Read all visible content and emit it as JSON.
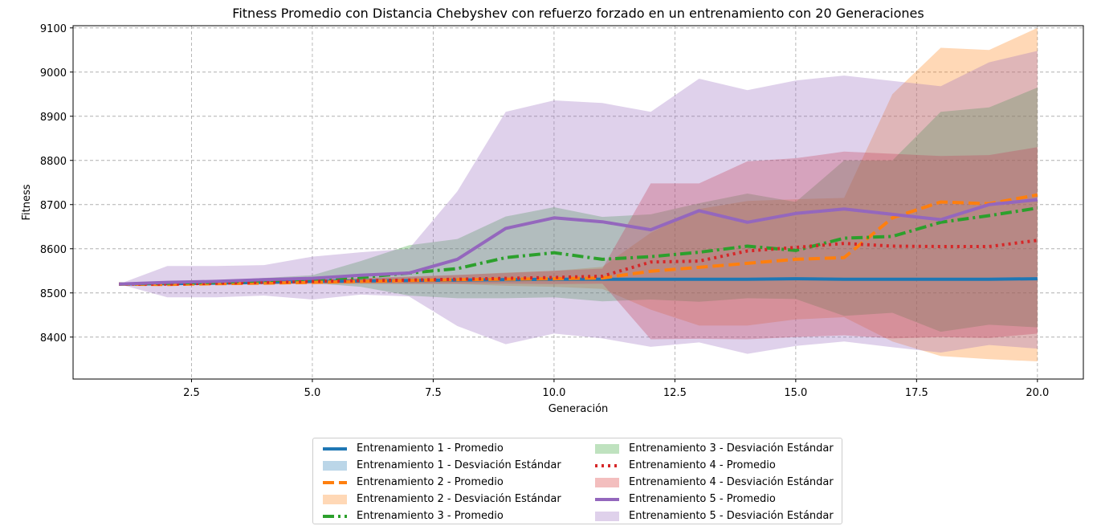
{
  "chart_data": {
    "type": "line",
    "title": "Fitness Promedio con Distancia Chebyshev con refuerzo forzado en un entrenamiento con 20 Generaciones",
    "xlabel": "Generación",
    "ylabel": "Fitness",
    "xlim": [
      0.05,
      20.95
    ],
    "ylim": [
      8305,
      9105
    ],
    "xticks": [
      2.5,
      5.0,
      7.5,
      10.0,
      12.5,
      15.0,
      17.5,
      20.0
    ],
    "xtick_labels": [
      "2.5",
      "5.0",
      "7.5",
      "10.0",
      "12.5",
      "15.0",
      "17.5",
      "20.0"
    ],
    "yticks": [
      8400,
      8500,
      8600,
      8700,
      8800,
      8900,
      9000,
      9100
    ],
    "ytick_labels": [
      "8400",
      "8500",
      "8600",
      "8700",
      "8800",
      "8900",
      "9000",
      "9100"
    ],
    "grid": true,
    "legend_position": "bottom-center, below plot, two columns",
    "x": [
      1,
      2,
      3,
      4,
      5,
      6,
      7,
      8,
      9,
      10,
      11,
      12,
      13,
      14,
      15,
      16,
      17,
      18,
      19,
      20
    ],
    "series": [
      {
        "name": "Entrenamiento 1 - Promedio",
        "band_name": "Entrenamiento 1 - Desviación Estándar",
        "color": "#1f77b4",
        "line_style": "solid",
        "mean": [
          8520,
          8521,
          8522,
          8524,
          8526,
          8527,
          8528,
          8529,
          8530,
          8531,
          8531,
          8531,
          8531,
          8531,
          8532,
          8531,
          8531,
          8531,
          8531,
          8532
        ],
        "upper": [
          8520,
          8523,
          8524,
          8526,
          8528,
          8530,
          8531,
          8532,
          8533,
          8534,
          8534,
          8534,
          8534,
          8534,
          8535,
          8534,
          8534,
          8534,
          8534,
          8535
        ],
        "lower": [
          8520,
          8519,
          8520,
          8522,
          8524,
          8524,
          8525,
          8526,
          8527,
          8528,
          8528,
          8528,
          8528,
          8528,
          8529,
          8528,
          8528,
          8528,
          8528,
          8529
        ]
      },
      {
        "name": "Entrenamiento 2 - Promedio",
        "band_name": "Entrenamiento 2 - Desviación Estándar",
        "color": "#ff7f0e",
        "line_style": "dashed",
        "mean": [
          8520,
          8519,
          8521,
          8522,
          8524,
          8526,
          8528,
          8530,
          8531,
          8532,
          8534,
          8549,
          8558,
          8567,
          8576,
          8580,
          8670,
          8706,
          8702,
          8722
        ],
        "upper": [
          8520,
          8521,
          8523,
          8525,
          8528,
          8532,
          8536,
          8540,
          8546,
          8550,
          8559,
          8636,
          8690,
          8708,
          8712,
          8715,
          8950,
          9055,
          9050,
          9100
        ],
        "lower": [
          8520,
          8517,
          8519,
          8519,
          8520,
          8520,
          8520,
          8520,
          8516,
          8514,
          8509,
          8462,
          8426,
          8426,
          8440,
          8445,
          8390,
          8357,
          8350,
          8345
        ]
      },
      {
        "name": "Entrenamiento 3 - Promedio",
        "band_name": "Entrenamiento 3 - Desviación Estándar",
        "color": "#2ca02c",
        "line_style": "dashdot",
        "mean": [
          8520,
          8522,
          8524,
          8528,
          8531,
          8535,
          8545,
          8555,
          8580,
          8591,
          8576,
          8582,
          8592,
          8606,
          8596,
          8624,
          8628,
          8660,
          8675,
          8692
        ],
        "upper": [
          8520,
          8525,
          8528,
          8534,
          8540,
          8572,
          8608,
          8622,
          8673,
          8694,
          8672,
          8678,
          8703,
          8725,
          8706,
          8800,
          8800,
          8910,
          8920,
          8965
        ],
        "lower": [
          8520,
          8519,
          8520,
          8522,
          8522,
          8514,
          8494,
          8488,
          8488,
          8490,
          8481,
          8485,
          8480,
          8488,
          8486,
          8448,
          8455,
          8412,
          8428,
          8422
        ]
      },
      {
        "name": "Entrenamiento 4 - Promedio",
        "band_name": "Entrenamiento 4 - Desviación Estándar",
        "color": "#d62728",
        "line_style": "dotted",
        "mean": [
          8520,
          8520,
          8522,
          8524,
          8526,
          8528,
          8529,
          8531,
          8533,
          8535,
          8538,
          8570,
          8572,
          8595,
          8603,
          8612,
          8606,
          8605,
          8605,
          8619
        ],
        "upper": [
          8520,
          8522,
          8524,
          8527,
          8530,
          8534,
          8537,
          8541,
          8545,
          8550,
          8555,
          8748,
          8748,
          8798,
          8805,
          8820,
          8815,
          8810,
          8812,
          8830
        ],
        "lower": [
          8520,
          8518,
          8520,
          8521,
          8522,
          8522,
          8521,
          8521,
          8521,
          8520,
          8521,
          8395,
          8396,
          8395,
          8400,
          8404,
          8397,
          8400,
          8398,
          8408
        ]
      },
      {
        "name": "Entrenamiento 5 - Promedio",
        "band_name": "Entrenamiento 5 - Desviación Estándar",
        "color": "#9467bd",
        "line_style": "solid",
        "mean": [
          8520,
          8524,
          8526,
          8530,
          8533,
          8540,
          8545,
          8576,
          8646,
          8670,
          8661,
          8643,
          8686,
          8660,
          8680,
          8690,
          8678,
          8666,
          8700,
          8711
        ],
        "upper": [
          8520,
          8561,
          8561,
          8563,
          8582,
          8592,
          8600,
          8730,
          8910,
          8936,
          8930,
          8910,
          8985,
          8959,
          8981,
          8992,
          8980,
          8968,
          9022,
          9048
        ],
        "lower": [
          8520,
          8490,
          8490,
          8494,
          8485,
          8496,
          8492,
          8425,
          8384,
          8408,
          8397,
          8378,
          8388,
          8362,
          8380,
          8390,
          8377,
          8365,
          8382,
          8374
        ]
      }
    ]
  }
}
